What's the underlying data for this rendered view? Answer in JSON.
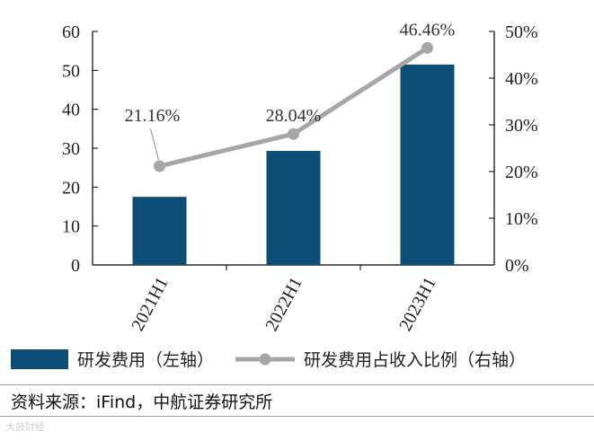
{
  "chart_data": {
    "type": "bar",
    "categories": [
      "2021H1",
      "2022H1",
      "2023H1"
    ],
    "series": [
      {
        "name": "研发费用（左轴）",
        "type": "bar",
        "axis": "left",
        "values": [
          17.5,
          29.3,
          51.5
        ],
        "color": "#0c4e76"
      },
      {
        "name": "研发费用占收入比例（右轴）",
        "type": "line",
        "axis": "right",
        "values": [
          21.16,
          28.04,
          46.46
        ],
        "color": "#a6a6a6",
        "labels": [
          "21.16%",
          "28.04%",
          "46.46%"
        ]
      }
    ],
    "y_left": {
      "min": 0,
      "max": 60,
      "ticks": [
        "0",
        "10",
        "20",
        "30",
        "40",
        "50",
        "60"
      ]
    },
    "y_right": {
      "min": 0,
      "max": 50,
      "ticks": [
        "0%",
        "10%",
        "20%",
        "30%",
        "40%",
        "50%"
      ]
    },
    "grid": false,
    "legend_position": "bottom"
  },
  "source": "资料来源：iFind，中航证券研究所",
  "watermark": "大鼓财经"
}
